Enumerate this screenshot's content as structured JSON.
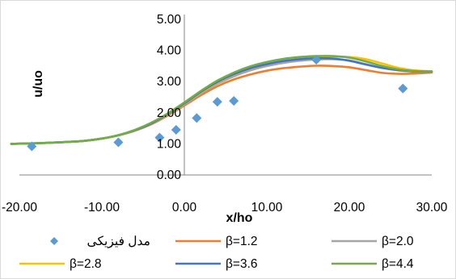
{
  "chart_data": {
    "type": "line",
    "title": "",
    "xlabel": "x/ho",
    "ylabel": "u/uo",
    "xlim": [
      -20,
      30
    ],
    "ylim": [
      0,
      5
    ],
    "x_ticks": [
      "-20.00",
      "-10.00",
      "0.00",
      "10.00",
      "20.00",
      "30.00"
    ],
    "y_ticks": [
      "0.00",
      "1.00",
      "2.00",
      "3.00",
      "4.00",
      "5.00"
    ],
    "grid": false,
    "legend_position": "bottom",
    "points": {
      "name": "مدل فیزیکی",
      "color": "#5B9BD5",
      "marker": "diamond",
      "x": [
        -18.5,
        -8.0,
        -3.0,
        -1.0,
        1.5,
        4.0,
        6.0,
        16.0,
        26.5
      ],
      "y": [
        0.92,
        1.05,
        1.2,
        1.45,
        1.83,
        2.35,
        2.38,
        3.7,
        2.78
      ]
    },
    "x": [
      -21,
      -18,
      -15,
      -12,
      -10,
      -8,
      -6,
      -4,
      -2,
      0,
      2,
      4,
      6,
      8,
      10,
      12,
      14,
      16,
      18,
      20,
      22,
      24,
      26,
      28,
      30
    ],
    "series": [
      {
        "name": "β=1.2",
        "color": "#ED7D31",
        "values": [
          1.0,
          1.02,
          1.05,
          1.1,
          1.17,
          1.27,
          1.42,
          1.63,
          1.91,
          2.23,
          2.56,
          2.85,
          3.07,
          3.23,
          3.35,
          3.43,
          3.48,
          3.51,
          3.5,
          3.46,
          3.37,
          3.28,
          3.25,
          3.26,
          3.29
        ]
      },
      {
        "name": "β=2.0",
        "color": "#A5A5A5",
        "values": [
          1.0,
          1.02,
          1.05,
          1.1,
          1.17,
          1.27,
          1.43,
          1.65,
          1.94,
          2.27,
          2.62,
          2.93,
          3.17,
          3.36,
          3.5,
          3.6,
          3.67,
          3.71,
          3.72,
          3.68,
          3.56,
          3.44,
          3.36,
          3.32,
          3.31
        ]
      },
      {
        "name": "β=2.8",
        "color": "#FFC000",
        "values": [
          1.0,
          1.02,
          1.05,
          1.1,
          1.17,
          1.28,
          1.44,
          1.66,
          1.95,
          2.29,
          2.65,
          2.97,
          3.23,
          3.42,
          3.56,
          3.66,
          3.73,
          3.78,
          3.8,
          3.79,
          3.72,
          3.58,
          3.44,
          3.36,
          3.33
        ]
      },
      {
        "name": "β=3.6",
        "color": "#4472C4",
        "values": [
          1.0,
          1.02,
          1.05,
          1.1,
          1.17,
          1.28,
          1.44,
          1.66,
          1.96,
          2.3,
          2.67,
          2.99,
          3.24,
          3.43,
          3.56,
          3.66,
          3.72,
          3.75,
          3.74,
          3.67,
          3.55,
          3.44,
          3.37,
          3.33,
          3.32
        ]
      },
      {
        "name": "β=4.4",
        "color": "#70AD47",
        "values": [
          1.0,
          1.02,
          1.05,
          1.1,
          1.17,
          1.28,
          1.45,
          1.68,
          1.98,
          2.33,
          2.7,
          3.03,
          3.29,
          3.49,
          3.63,
          3.73,
          3.79,
          3.82,
          3.82,
          3.77,
          3.65,
          3.5,
          3.39,
          3.34,
          3.33
        ]
      }
    ]
  }
}
